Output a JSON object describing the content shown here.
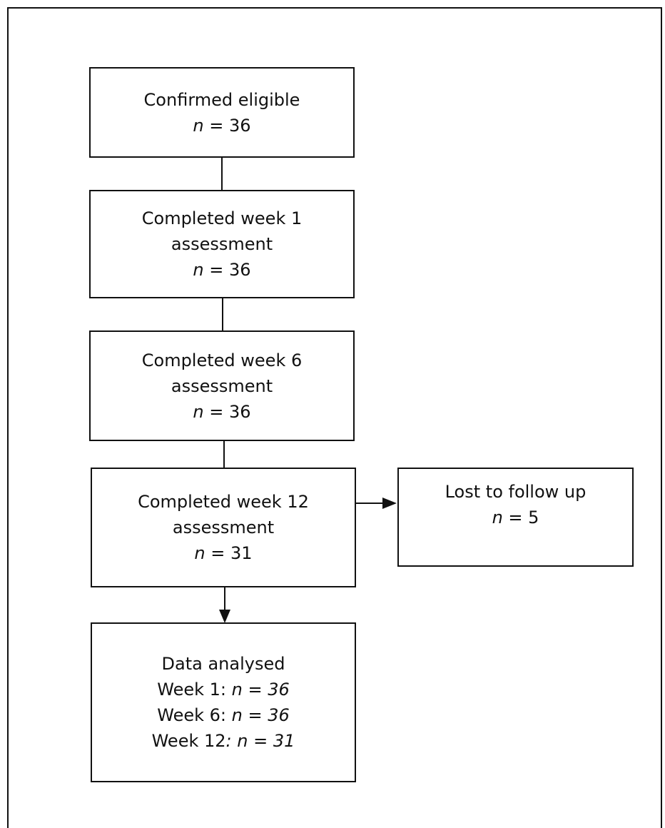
{
  "nodes": {
    "eligible": {
      "title": "Confirmed eligible",
      "n_label": "n",
      "n_value": "= 36"
    },
    "week1": {
      "title_1": "Completed week 1",
      "title_2": "assessment",
      "n_label": "n",
      "n_value": "= 36"
    },
    "week6": {
      "title_1": "Completed week 6",
      "title_2": "assessment",
      "n_label": "n",
      "n_value": "= 36"
    },
    "week12": {
      "title_1": "Completed week 12",
      "title_2": "assessment",
      "n_label": "n",
      "n_value": "= 31"
    },
    "lost": {
      "title": "Lost to follow up",
      "n_label": "n",
      "n_value": "= 5"
    },
    "analysed": {
      "title": "Data analysed",
      "rows": [
        {
          "label": "Week 1: ",
          "n": "n = 36"
        },
        {
          "label": "Week 6: ",
          "n": "n = 36"
        },
        {
          "label": "Week 12",
          "n": ": n = 31"
        }
      ]
    }
  },
  "colors": {
    "stroke": "#111111",
    "background": "#ffffff"
  }
}
